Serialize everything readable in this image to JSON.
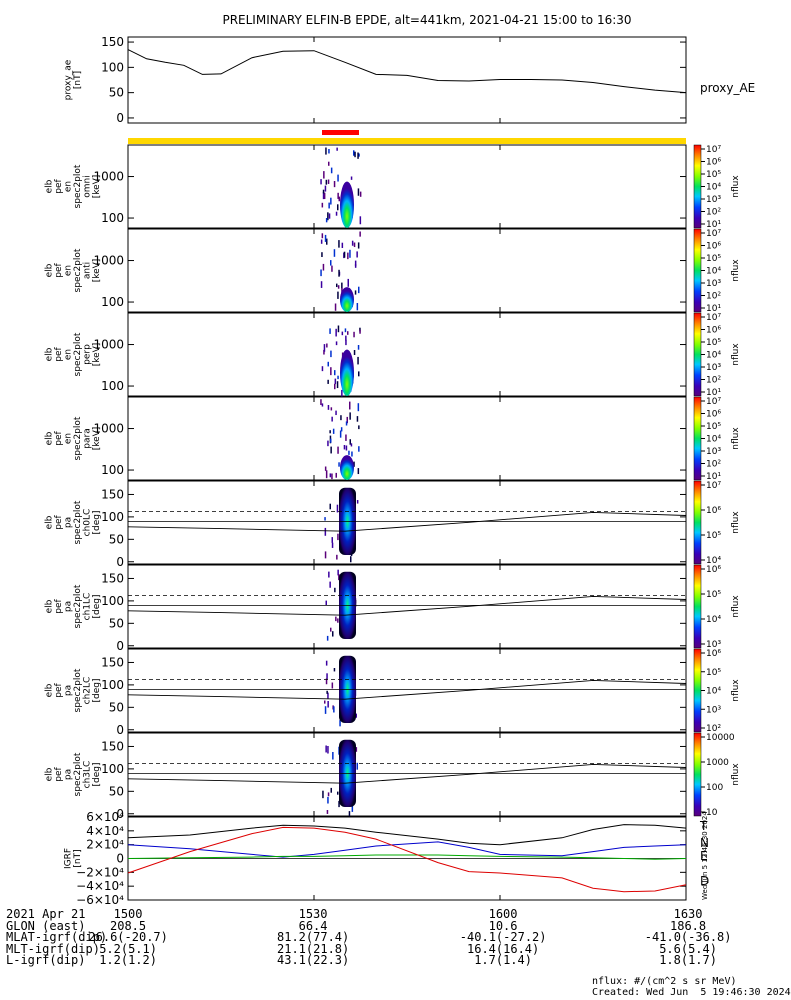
{
  "title": "PRELIMINARY ELFIN-B EPDE, alt=441km, 2021-04-21 15:00 to 16:30",
  "colors": {
    "bar_yellow": "#FFD700",
    "bar_red": "#FF0000",
    "trace_T": "#000000",
    "trace_N": "#0000CC",
    "trace_E": "#00AA00",
    "trace_D": "#DD0000"
  },
  "chart_data": [
    {
      "type": "line",
      "panel": "proxy_ae",
      "ylabel": [
        "proxy_ae",
        "[nT]"
      ],
      "legend": "proxy_AE",
      "yticks": [
        "150",
        "100",
        "50",
        "0"
      ],
      "ylim": [
        -10,
        160
      ],
      "x": [
        0,
        3,
        6,
        9,
        12,
        15,
        20,
        25,
        30,
        35,
        40,
        45,
        50,
        55,
        60,
        65,
        70,
        75,
        80,
        85,
        90
      ],
      "values": [
        135,
        117,
        110,
        104,
        86,
        87,
        119,
        132,
        133,
        110,
        86,
        84,
        74,
        73,
        76,
        76,
        75,
        70,
        62,
        55,
        50
      ]
    },
    {
      "type": "heatmap",
      "panel": "spec_omni",
      "ylabel": [
        "elb",
        "pef",
        "en",
        "spec2plot",
        "omni",
        "[keV]"
      ],
      "yticks": [
        "1000",
        "100"
      ],
      "colorbar": {
        "label": "nflux",
        "ticks": [
          "10⁷",
          "10⁶",
          "10⁵",
          "10⁴",
          "10³",
          "10²",
          "10¹"
        ]
      }
    },
    {
      "type": "heatmap",
      "panel": "spec_anti",
      "ylabel": [
        "elb",
        "pef",
        "en",
        "spec2plot",
        "anti",
        "[keV]"
      ],
      "yticks": [
        "1000",
        "100"
      ],
      "colorbar": {
        "label": "nflux",
        "ticks": [
          "10⁷",
          "10⁶",
          "10⁵",
          "10⁴",
          "10³",
          "10²",
          "10¹"
        ]
      }
    },
    {
      "type": "heatmap",
      "panel": "spec_perp",
      "ylabel": [
        "elb",
        "pef",
        "en",
        "spec2plot",
        "perp",
        "[keV]"
      ],
      "yticks": [
        "1000",
        "100"
      ],
      "colorbar": {
        "label": "nflux",
        "ticks": [
          "10⁷",
          "10⁶",
          "10⁵",
          "10⁴",
          "10³",
          "10²",
          "10¹"
        ]
      }
    },
    {
      "type": "heatmap",
      "panel": "spec_para",
      "ylabel": [
        "elb",
        "pef",
        "en",
        "spec2plot",
        "para",
        "[keV]"
      ],
      "yticks": [
        "1000",
        "100"
      ],
      "colorbar": {
        "label": "nflux",
        "ticks": [
          "10⁷",
          "10⁶",
          "10⁵",
          "10⁴",
          "10³",
          "10²",
          "10¹"
        ]
      }
    },
    {
      "type": "heatmap",
      "panel": "pa_ch0",
      "ylabel": [
        "elb",
        "pef",
        "pa",
        "spec2plot",
        "ch0LC",
        "[deg]"
      ],
      "yticks": [
        "150",
        "100",
        "50",
        "0"
      ],
      "colorbar": {
        "label": "nflux",
        "ticks": [
          "10⁷",
          "10⁶",
          "10⁵",
          "10⁴"
        ]
      }
    },
    {
      "type": "heatmap",
      "panel": "pa_ch1",
      "ylabel": [
        "elb",
        "pef",
        "pa",
        "spec2plot",
        "ch1LC",
        "[deg]"
      ],
      "yticks": [
        "150",
        "100",
        "50",
        "0"
      ],
      "colorbar": {
        "label": "nflux",
        "ticks": [
          "10⁶",
          "10⁵",
          "10⁴",
          "10³"
        ]
      }
    },
    {
      "type": "heatmap",
      "panel": "pa_ch2",
      "ylabel": [
        "elb",
        "pef",
        "pa",
        "spec2plot",
        "ch2LC",
        "[deg]"
      ],
      "yticks": [
        "150",
        "100",
        "50",
        "0"
      ],
      "colorbar": {
        "label": "nflux",
        "ticks": [
          "10⁶",
          "10⁵",
          "10⁴",
          "10³",
          "10²"
        ]
      }
    },
    {
      "type": "heatmap",
      "panel": "pa_ch3",
      "ylabel": [
        "elb",
        "pef",
        "pa",
        "spec2plot",
        "ch3LC",
        "[deg]"
      ],
      "yticks": [
        "150",
        "100",
        "50",
        "0"
      ],
      "colorbar": {
        "label": "nflux",
        "ticks": [
          "10000",
          "1000",
          "100",
          "10"
        ]
      }
    },
    {
      "type": "line",
      "panel": "igrf",
      "ylabel": [
        "IGRF",
        "[nT]"
      ],
      "yticks": [
        "6×10⁴",
        "4×10⁴",
        "2×10⁴",
        "0",
        "−2×10⁴",
        "−4×10⁴",
        "−6×10⁴"
      ],
      "ylim": [
        -60000,
        60000
      ],
      "x": [
        0,
        10,
        20,
        25,
        30,
        35,
        40,
        50,
        55,
        60,
        70,
        75,
        80,
        85,
        90
      ],
      "series": [
        {
          "name": "T",
          "values": [
            30000,
            34000,
            44000,
            48000,
            47000,
            44000,
            38000,
            28000,
            22000,
            20000,
            30000,
            42000,
            49000,
            48000,
            44000
          ]
        },
        {
          "name": "N",
          "values": [
            20000,
            14000,
            6000,
            2000,
            6000,
            12000,
            18000,
            24000,
            16000,
            6000,
            4000,
            10000,
            16000,
            18000,
            20000
          ]
        },
        {
          "name": "E",
          "values": [
            0,
            1000,
            2000,
            3000,
            3000,
            4000,
            5000,
            5000,
            4000,
            3000,
            2000,
            1000,
            0,
            -1000,
            0
          ]
        },
        {
          "name": "D",
          "values": [
            -21000,
            10000,
            36000,
            45000,
            44000,
            38000,
            28000,
            -6000,
            -19000,
            -21000,
            -28000,
            -43000,
            -48000,
            -47000,
            -38000
          ]
        }
      ]
    }
  ],
  "x_axis": {
    "tick_labels": [
      "1500",
      "1530",
      "1600",
      "1630"
    ],
    "rows": [
      {
        "label": "2021 Apr 21",
        "values": [
          "1500",
          "1530",
          "1600",
          "1630"
        ]
      },
      {
        "label": "GLON (east)",
        "values": [
          "208.5",
          "66.4",
          "10.6",
          "186.8"
        ]
      },
      {
        "label": "MLAT-igrf(dip)",
        "values": [
          "26.6(-20.7)",
          "81.2(77.4)",
          "-40.1(-27.2)",
          "-41.0(-36.8)"
        ]
      },
      {
        "label": "MLT-igrf(dip)",
        "values": [
          "5.2(5.1)",
          "21.1(21.8)",
          "16.4(16.4)",
          "5.6(5.4)"
        ]
      },
      {
        "label": "L-igrf(dip)",
        "values": [
          "1.2(1.2)",
          "43.1(22.3)",
          "1.7(1.4)",
          "1.8(1.7)"
        ]
      }
    ]
  },
  "footnote_units": "nflux: #/(cm^2 s sr MeV)",
  "footnote_created": "Created: Wed Jun  5 19:46:30 2024",
  "side_stamp": "Wed Jun  5 12:46:30 2024"
}
